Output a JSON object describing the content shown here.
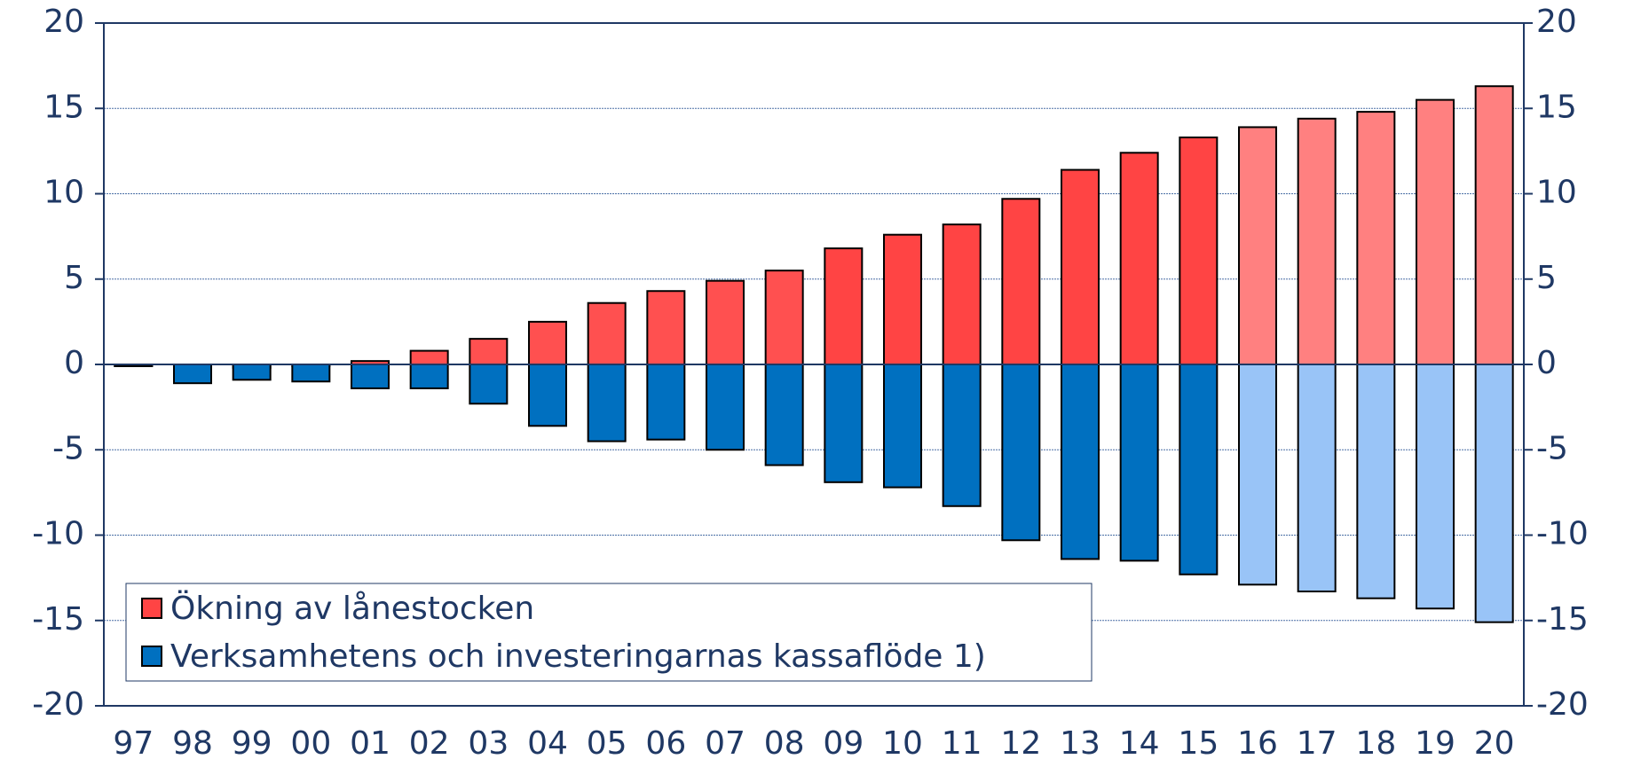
{
  "chart_data": {
    "type": "bar",
    "categories": [
      "97",
      "98",
      "99",
      "00",
      "01",
      "02",
      "03",
      "04",
      "05",
      "06",
      "07",
      "08",
      "09",
      "10",
      "11",
      "12",
      "13",
      "14",
      "15",
      "16",
      "17",
      "18",
      "19",
      "20"
    ],
    "series": [
      {
        "name": "Ökning av lånestocken",
        "color": "#ff4444",
        "colors": [
          "#ff5050",
          "#ff5050",
          "#ff5050",
          "#ff5050",
          "#ff5050",
          "#ff5050",
          "#ff5050",
          "#ff5050",
          "#ff5050",
          "#ff5050",
          "#ff5050",
          "#ff5050",
          "#ff4444",
          "#ff4444",
          "#ff4444",
          "#ff4444",
          "#ff4444",
          "#ff4444",
          "#ff4444",
          "#ff8080",
          "#ff8080",
          "#ff8080",
          "#ff8080",
          "#ff8080"
        ],
        "values": [
          -0.1,
          0,
          -0.2,
          -0.1,
          0.2,
          0.8,
          1.5,
          2.5,
          3.6,
          4.3,
          4.9,
          5.5,
          6.8,
          7.6,
          8.2,
          9.7,
          11.4,
          12.4,
          13.3,
          13.9,
          14.4,
          14.8,
          15.5,
          16.3
        ]
      },
      {
        "name": "Verksamhetens och investeringarnas kassaflöde 1)",
        "color": "#0070c0",
        "colors": [
          "#0070c0",
          "#0070c0",
          "#0070c0",
          "#0070c0",
          "#0070c0",
          "#0070c0",
          "#0070c0",
          "#0070c0",
          "#0070c0",
          "#0070c0",
          "#0070c0",
          "#0070c0",
          "#0070c0",
          "#0070c0",
          "#0070c0",
          "#0070c0",
          "#0070c0",
          "#0070c0",
          "#0070c0",
          "#99c4f7",
          "#99c4f7",
          "#99c4f7",
          "#99c4f7",
          "#99c4f7"
        ],
        "values": [
          -0.1,
          -1.1,
          -0.9,
          -1.0,
          -1.4,
          -1.4,
          -2.3,
          -3.6,
          -4.5,
          -4.4,
          -5.0,
          -5.9,
          -6.9,
          -7.2,
          -8.3,
          -10.3,
          -11.4,
          -11.5,
          -12.3,
          -12.9,
          -13.3,
          -13.7,
          -14.3,
          -15.1
        ]
      }
    ],
    "ylim": [
      -20,
      20
    ],
    "yticks": [
      -20,
      -15,
      -10,
      -5,
      0,
      5,
      10,
      15,
      20
    ],
    "y2lim": [
      -20,
      20
    ],
    "y2ticks": [
      -20,
      -15,
      -10,
      -5,
      0,
      5,
      10,
      15,
      20
    ],
    "grid": true,
    "legend": "lower left"
  }
}
